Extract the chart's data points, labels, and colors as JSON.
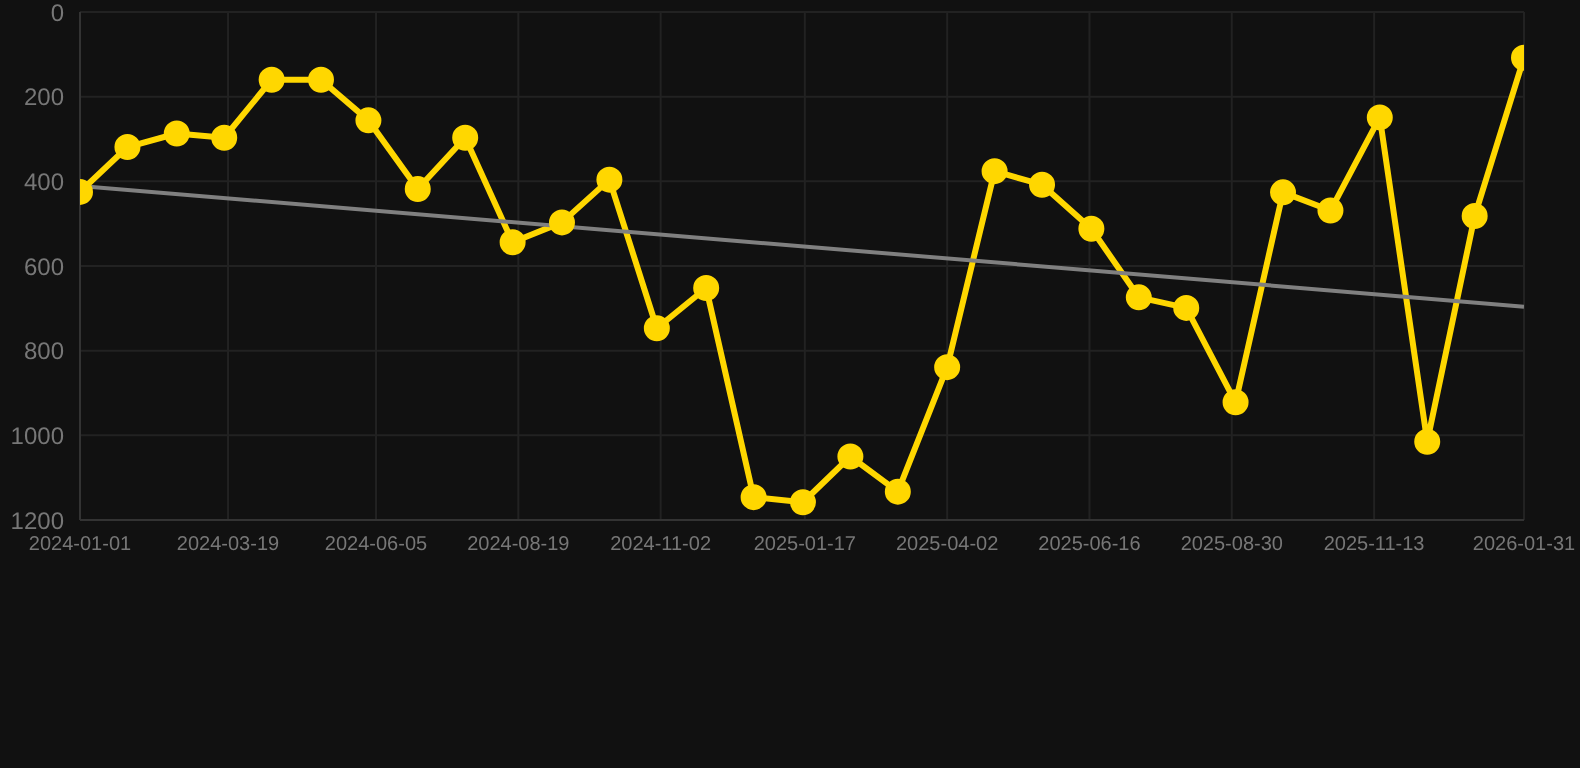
{
  "chart_data": {
    "type": "line",
    "x": [
      "2024-01-01",
      "2024-01-26",
      "2024-02-21",
      "2024-03-17",
      "2024-04-11",
      "2024-05-07",
      "2024-06-01",
      "2024-06-27",
      "2024-07-22",
      "2024-08-16",
      "2024-09-11",
      "2024-10-06",
      "2024-10-31",
      "2024-11-26",
      "2024-12-21",
      "2025-01-16",
      "2025-02-10",
      "2025-03-07",
      "2025-04-02",
      "2025-04-27",
      "2025-05-22",
      "2025-06-17",
      "2025-07-12",
      "2025-08-06",
      "2025-09-01",
      "2025-09-26",
      "2025-10-21",
      "2025-11-16",
      "2025-12-11",
      "2026-01-05",
      "2026-01-31"
    ],
    "series": [
      {
        "color": "#ffd700",
        "marker": "circle",
        "values": [
          425,
          319,
          287,
          297,
          160,
          160,
          256,
          418,
          297,
          544,
          497,
          396,
          747,
          652,
          1146,
          1158,
          1050,
          1133,
          839,
          376,
          408,
          512,
          674,
          699,
          922,
          426,
          469,
          249,
          1015,
          482,
          108
        ]
      },
      {
        "type": "line",
        "color": "#808080",
        "marker": "none",
        "x": [
          "2024-01-01",
          "2026-01-31"
        ],
        "values": [
          411,
          696
        ]
      }
    ],
    "xlim": [
      "2024-01-01",
      "2026-01-31"
    ],
    "xticks": [
      "2024-01-01",
      "2024-03-19",
      "2024-06-05",
      "2024-08-19",
      "2024-11-02",
      "2025-01-17",
      "2025-04-02",
      "2025-06-16",
      "2025-08-30",
      "2025-11-13",
      "2026-01-31"
    ],
    "ylim": [
      1200,
      0
    ],
    "yticks": [
      0,
      200,
      400,
      600,
      800,
      1000,
      1200
    ],
    "grid": true,
    "legend": false
  }
}
